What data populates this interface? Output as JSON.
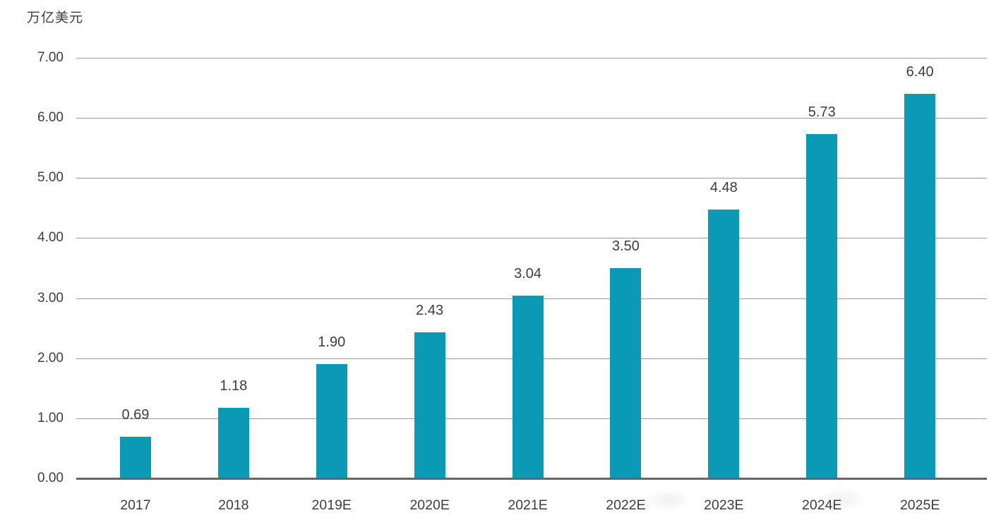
{
  "chart_data": {
    "type": "bar",
    "title": "",
    "unit_label": "万亿美元",
    "categories": [
      "2017",
      "2018",
      "2019E",
      "2020E",
      "2021E",
      "2022E",
      "2023E",
      "2024E",
      "2025E"
    ],
    "values": [
      0.69,
      1.18,
      1.9,
      2.43,
      3.04,
      3.5,
      4.48,
      5.73,
      6.4
    ],
    "value_labels": [
      "0.69",
      "1.18",
      "1.90",
      "2.43",
      "3.04",
      "3.50",
      "4.48",
      "5.73",
      "6.40"
    ],
    "ylim": [
      0,
      7
    ],
    "ytick_step": 1,
    "ytick_labels": [
      "0.00",
      "1.00",
      "2.00",
      "3.00",
      "4.00",
      "5.00",
      "6.00",
      "7.00"
    ],
    "grid": true,
    "legend": false,
    "xlabel": "",
    "ylabel": "万亿美元",
    "colors": {
      "bar": "#0a9ab6",
      "gridline": "#9c9c9c",
      "axis": "#666666",
      "text": "#3d3d3d",
      "background": "#ffffff"
    }
  }
}
